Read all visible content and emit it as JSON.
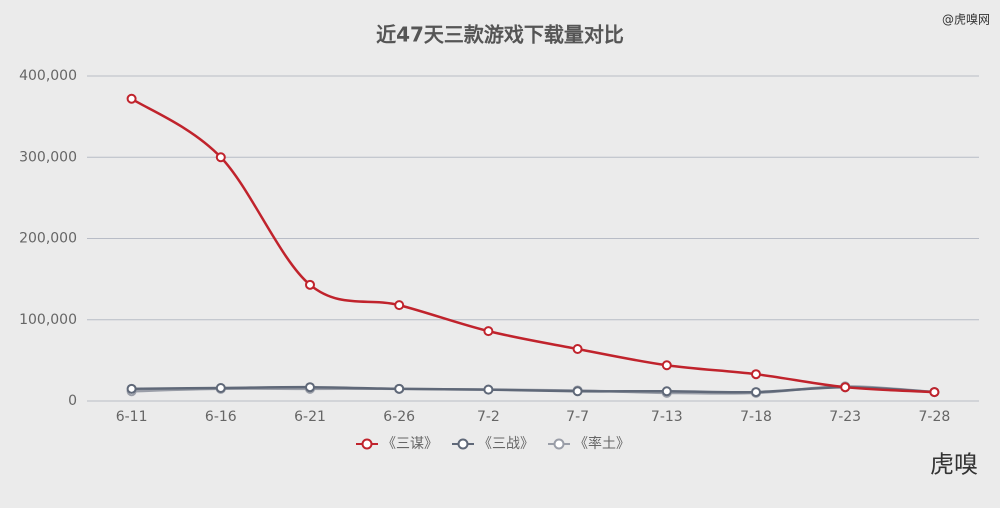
{
  "chart_data": {
    "type": "line",
    "title": "近47天三款游戏下载量对比",
    "categories": [
      "6-11",
      "6-16",
      "6-21",
      "6-26",
      "7-2",
      "7-7",
      "7-13",
      "7-18",
      "7-23",
      "7-28"
    ],
    "series": [
      {
        "name": "《三谋》",
        "color": "#c0232c",
        "values": [
          372000,
          300000,
          143000,
          118000,
          86000,
          64000,
          44000,
          33000,
          17000,
          11000
        ]
      },
      {
        "name": "《三战》",
        "color": "#5f6878",
        "values": [
          15000,
          16000,
          17000,
          15000,
          14000,
          12000,
          12000,
          11000,
          17000,
          11000
        ]
      },
      {
        "name": "《率土》",
        "color": "#9a9ea8",
        "values": [
          12000,
          15000,
          15000,
          15000,
          14000,
          13000,
          10000,
          10000,
          18000,
          11000
        ]
      }
    ],
    "ylim": [
      0,
      400000
    ],
    "yticks": [
      0,
      {
        "value": 100000,
        "label": "100,000"
      },
      {
        "value": 200000,
        "label": "200,000"
      },
      {
        "value": 300000,
        "label": "300,000"
      },
      {
        "value": 400000,
        "label": "400,000"
      }
    ],
    "grid": true,
    "smooth": true,
    "legend": "bottom",
    "source": "@虎嗅网",
    "logo": "虎嗅"
  }
}
